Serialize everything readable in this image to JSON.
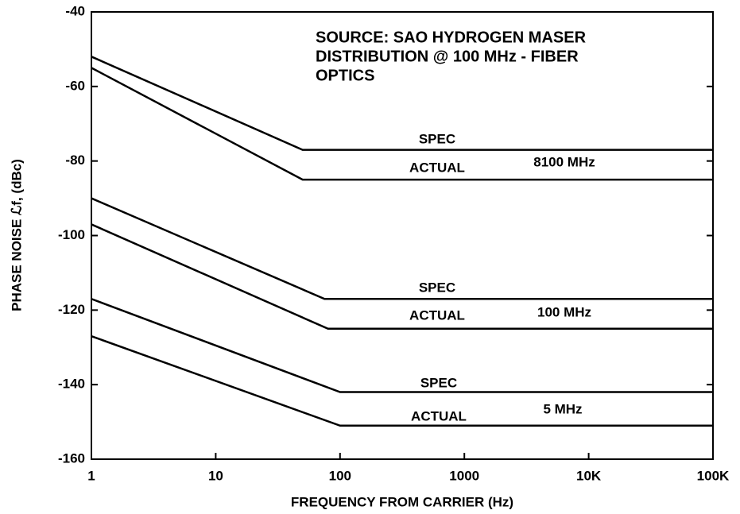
{
  "chart_data": {
    "type": "line",
    "title": [
      "SOURCE: SAO HYDROGEN MASER",
      "DISTRIBUTION @ 100 MHz - FIBER",
      "OPTICS"
    ],
    "x_label": "FREQUENCY FROM CARRIER (Hz)",
    "y_label": "PHASE NOISE ℒf, (dBc)",
    "log_x": true,
    "color": "#000000",
    "xlim": [
      1,
      100000
    ],
    "ylim": [
      -160,
      -40
    ],
    "xticks": [
      1,
      10,
      100,
      1000,
      {
        "value": 10000,
        "label": "10K"
      },
      {
        "value": 100000,
        "label": "100K"
      }
    ],
    "yticks": [
      -40,
      -60,
      -80,
      -100,
      -120,
      -140,
      -160
    ],
    "annotations": [
      "8100 MHz",
      "100 MHz",
      "5 MHz"
    ],
    "series": [
      {
        "name": "SPEC",
        "x": [
          1,
          50,
          100000
        ],
        "values": [
          -52,
          -77,
          -77
        ]
      },
      {
        "name": "ACTUAL",
        "x": [
          1,
          50,
          100000
        ],
        "values": [
          -55,
          -85,
          -85
        ]
      },
      {
        "name": "SPEC",
        "x": [
          1,
          75,
          100000
        ],
        "values": [
          -90,
          -117,
          -117
        ]
      },
      {
        "name": "ACTUAL",
        "x": [
          1,
          80,
          100000
        ],
        "values": [
          -97,
          -125,
          -125
        ]
      },
      {
        "name": "SPEC",
        "x": [
          1,
          100,
          100000
        ],
        "values": [
          -117,
          -142,
          -142
        ]
      },
      {
        "name": "ACTUAL",
        "x": [
          1,
          100,
          100000
        ],
        "values": [
          -127,
          -151,
          -151
        ]
      }
    ]
  }
}
